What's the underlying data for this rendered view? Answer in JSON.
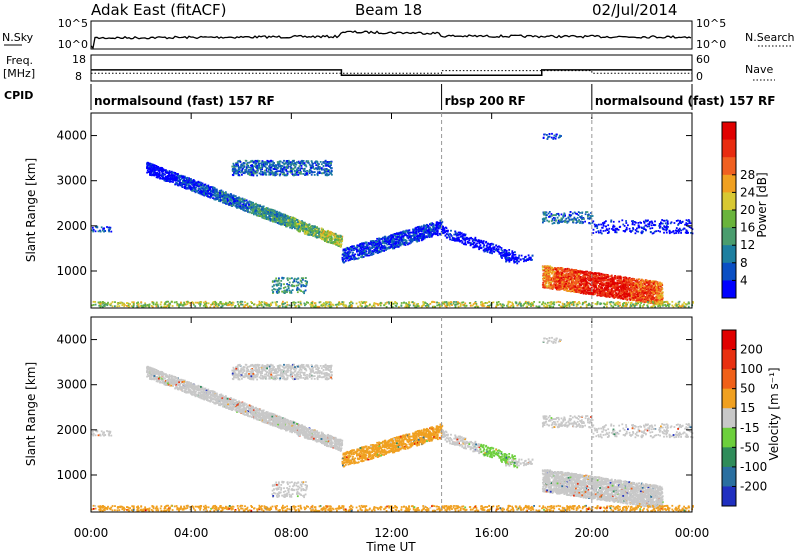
{
  "header": {
    "radar_title": "Adak East (fitACF)",
    "beam": "Beam 18",
    "date": "02/Jul/2014"
  },
  "summary_panels": {
    "nsky_label": "N.Sky",
    "nsearch_label": "N.Search",
    "freq_label": "Freq.",
    "freq_unit": "[MHz]",
    "nave_label": "Nave",
    "cpid_label": "CPID",
    "noise_ticks": [
      "10^5",
      "10^0"
    ],
    "freq_ticks": [
      "18",
      "8"
    ],
    "nave_ticks": [
      "60",
      "0"
    ]
  },
  "cpid_segments": [
    {
      "label": "normalsound (fast) 157 RF",
      "start_hour": 0
    },
    {
      "label": "rbsp 200 RF",
      "start_hour": 14
    },
    {
      "label": "normalsound (fast) 157 RF",
      "start_hour": 20
    }
  ],
  "chart_data": [
    {
      "type": "heatmap",
      "name": "power",
      "ylabel": "Slant Range [km]",
      "xlabel": "",
      "ylim": [
        180,
        4500
      ],
      "y_ticks": [
        "1000",
        "2000",
        "3000",
        "4000"
      ],
      "colorbar": {
        "label": "Power [dB]",
        "ticks": [
          "4",
          "8",
          "12",
          "16",
          "20",
          "24",
          "28"
        ],
        "colors": [
          "#0000ff",
          "#0a4fc4",
          "#1d7fa0",
          "#4a9d6e",
          "#6ab43c",
          "#d8c832",
          "#f0a020",
          "#f06020",
          "#e82c10",
          "#e00000"
        ]
      }
    },
    {
      "type": "heatmap",
      "name": "velocity",
      "ylabel": "Slant Range [km]",
      "xlabel": "Time UT",
      "ylim": [
        180,
        4500
      ],
      "y_ticks": [
        "1000",
        "2000",
        "3000",
        "4000"
      ],
      "x_ticks": [
        "00:00",
        "04:00",
        "08:00",
        "12:00",
        "16:00",
        "20:00",
        "00:00"
      ],
      "colorbar": {
        "label": "Velocity [m s⁻¹]",
        "ticks": [
          "200",
          "100",
          "50",
          "15",
          "-15",
          "-50",
          "-100",
          "-200"
        ],
        "colors": [
          "#2030c0",
          "#2a6fa0",
          "#2f8c5a",
          "#6ccf3c",
          "#c8c8c8",
          "#f0a020",
          "#f06018",
          "#e83010",
          "#e00000"
        ]
      }
    }
  ]
}
